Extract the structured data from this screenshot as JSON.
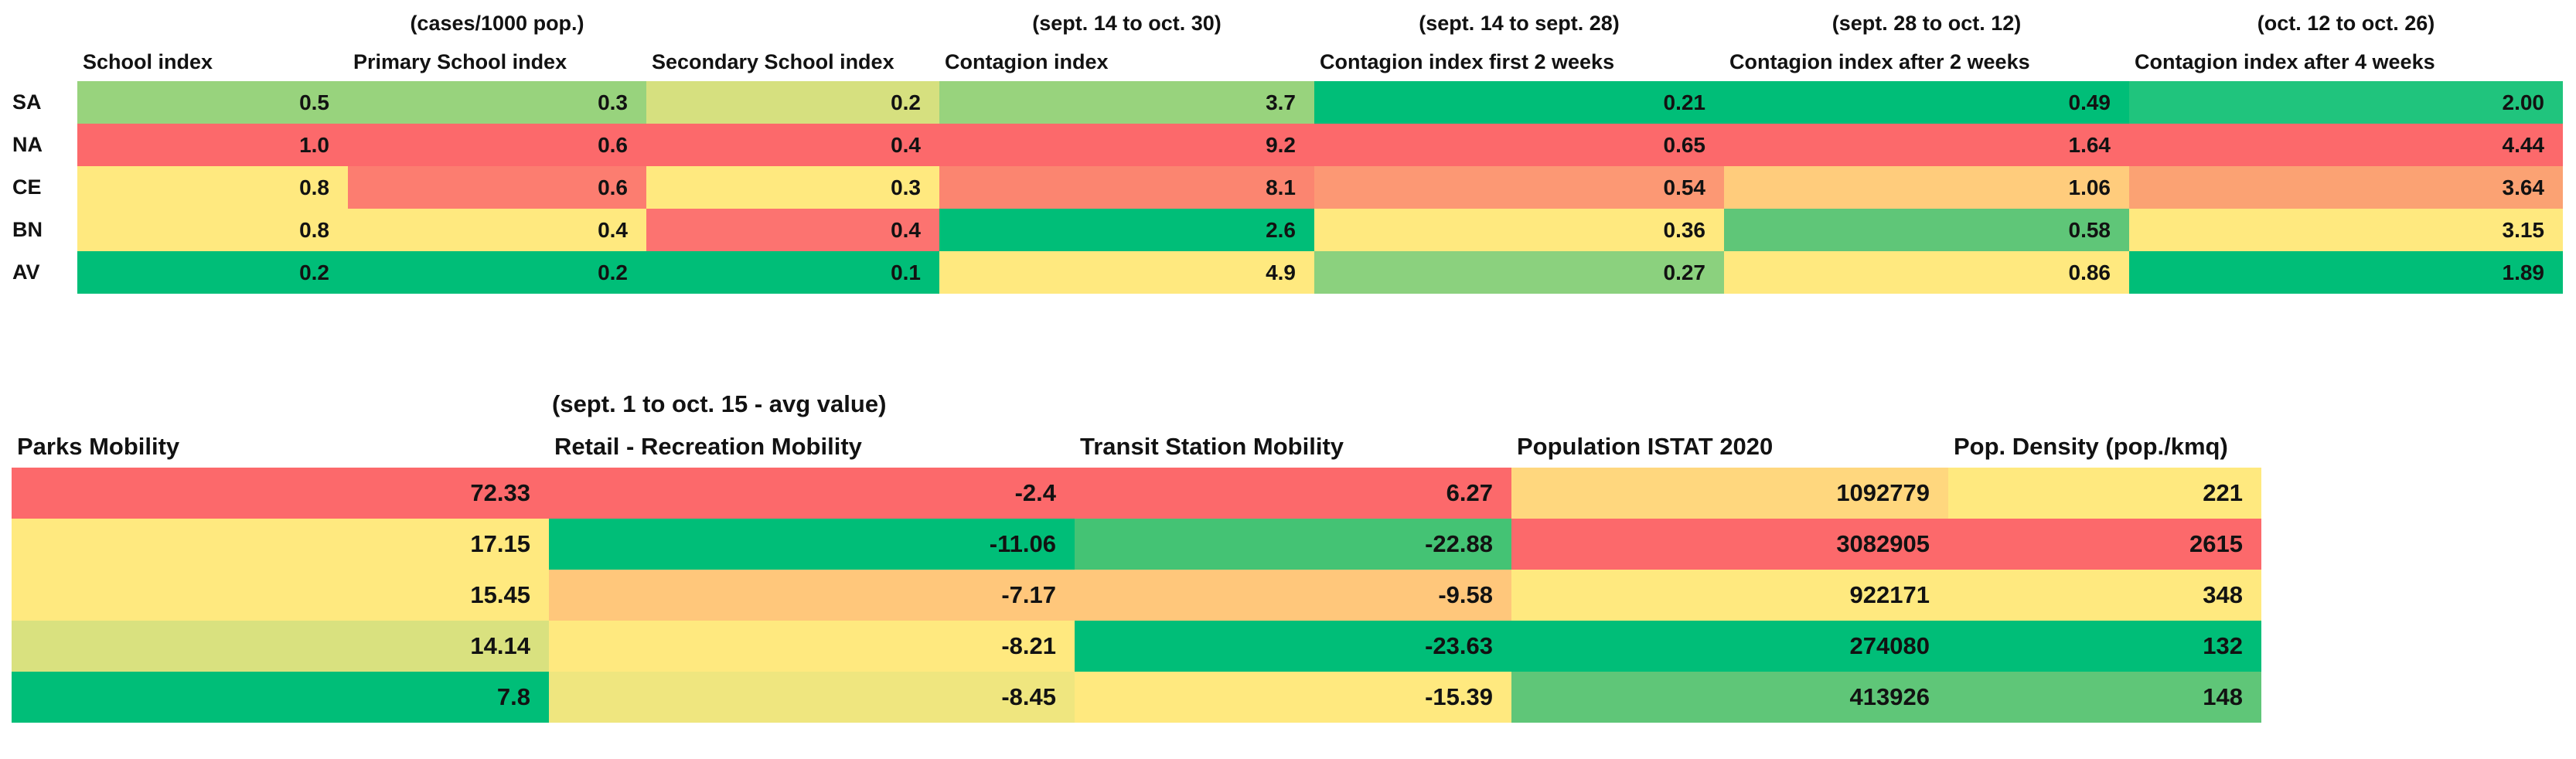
{
  "color_scale": {
    "low_red": "#FC696B",
    "mid_yellow": "#FFE97F",
    "high_green": "#00BE78"
  },
  "chart_data": [
    {
      "type": "heatmap",
      "name": "school-and-contagion-indices-by-province",
      "group_headers": [
        {
          "text": "(cases/1000 pop.)",
          "col": 1
        },
        {
          "text": "(sept. 14 to oct. 30)",
          "col": 3
        },
        {
          "text": "(sept. 14 to sept. 28)",
          "col": 4
        },
        {
          "text": "(sept. 28 to oct. 12)",
          "col": 5
        },
        {
          "text": "(oct. 12 to oct. 26)",
          "col": 6
        }
      ],
      "columns": [
        "School index",
        "Primary School index",
        "Secondary School index",
        "Contagion index",
        "Contagion index first 2 weeks",
        "Contagion index after 2 weeks",
        "Contagion index after 4 weeks"
      ],
      "row_labels": [
        "SA",
        "NA",
        "CE",
        "BN",
        "AV"
      ],
      "rows": [
        {
          "label": "SA",
          "values": [
            "0.5",
            "0.3",
            "0.2",
            "3.7",
            "0.21",
            "0.49",
            "2.00"
          ],
          "colors": [
            "#98D37D",
            "#98D37D",
            "#D6E07F",
            "#98D37D",
            "#00BE78",
            "#00BE78",
            "#20C47D"
          ]
        },
        {
          "label": "NA",
          "values": [
            "1.0",
            "0.6",
            "0.4",
            "9.2",
            "0.65",
            "1.64",
            "4.44"
          ],
          "colors": [
            "#FC696B",
            "#FC696B",
            "#FC696B",
            "#FC696B",
            "#FC696B",
            "#FC696B",
            "#FC696B"
          ]
        },
        {
          "label": "CE",
          "values": [
            "0.8",
            "0.6",
            "0.3",
            "8.1",
            "0.54",
            "1.06",
            "3.64"
          ],
          "colors": [
            "#FFE97F",
            "#FC7D70",
            "#FFE97F",
            "#FB8570",
            "#FC9874",
            "#FFCC7C",
            "#FBA273"
          ]
        },
        {
          "label": "BN",
          "values": [
            "0.8",
            "0.4",
            "0.4",
            "2.6",
            "0.36",
            "0.58",
            "3.15"
          ],
          "colors": [
            "#FFE97F",
            "#FFE97F",
            "#FC7370",
            "#00BE78",
            "#FFE97F",
            "#5FC678",
            "#FFE97F"
          ]
        },
        {
          "label": "AV",
          "values": [
            "0.2",
            "0.2",
            "0.1",
            "4.9",
            "0.27",
            "0.86",
            "1.89"
          ],
          "colors": [
            "#00BE78",
            "#00BE78",
            "#00BE78",
            "#FFE97F",
            "#8BD17E",
            "#FFE97F",
            "#00BE78"
          ]
        }
      ]
    },
    {
      "type": "heatmap",
      "name": "mobility-and-population-by-province",
      "group_headers": [
        {
          "text": "(sept. 1 to  oct. 15 - avg value)",
          "col": 1
        }
      ],
      "columns": [
        "Parks Mobility",
        "Retail - Recreation Mobility",
        "Transit Station Mobility",
        "Population ISTAT 2020",
        "Pop. Density (pop./kmq)"
      ],
      "rows": [
        {
          "values": [
            "72.33",
            "-2.4",
            "6.27",
            "1092779",
            "221"
          ],
          "colors": [
            "#FC696B",
            "#FC696B",
            "#FC696B",
            "#FFD77E",
            "#FFE97F"
          ]
        },
        {
          "values": [
            "17.15",
            "-11.06",
            "-22.88",
            "3082905",
            "2615"
          ],
          "colors": [
            "#FFE97F",
            "#00BE78",
            "#44C374",
            "#FC696B",
            "#FC696B"
          ]
        },
        {
          "values": [
            "15.45",
            "-7.17",
            "-9.58",
            "922171",
            "348"
          ],
          "colors": [
            "#FFE97F",
            "#FFC77B",
            "#FFC77B",
            "#FFE97F",
            "#FFE97F"
          ]
        },
        {
          "values": [
            "14.14",
            "-8.21",
            "-23.63",
            "274080",
            "132"
          ],
          "colors": [
            "#D9E17F",
            "#FFE97F",
            "#00BE78",
            "#00BE78",
            "#00BE78"
          ]
        },
        {
          "values": [
            "7.8",
            "-8.45",
            "-15.39",
            "413926",
            "148"
          ],
          "colors": [
            "#00BE78",
            "#EFE67F",
            "#FFE97F",
            "#5FC678",
            "#5FC678"
          ]
        }
      ]
    }
  ]
}
